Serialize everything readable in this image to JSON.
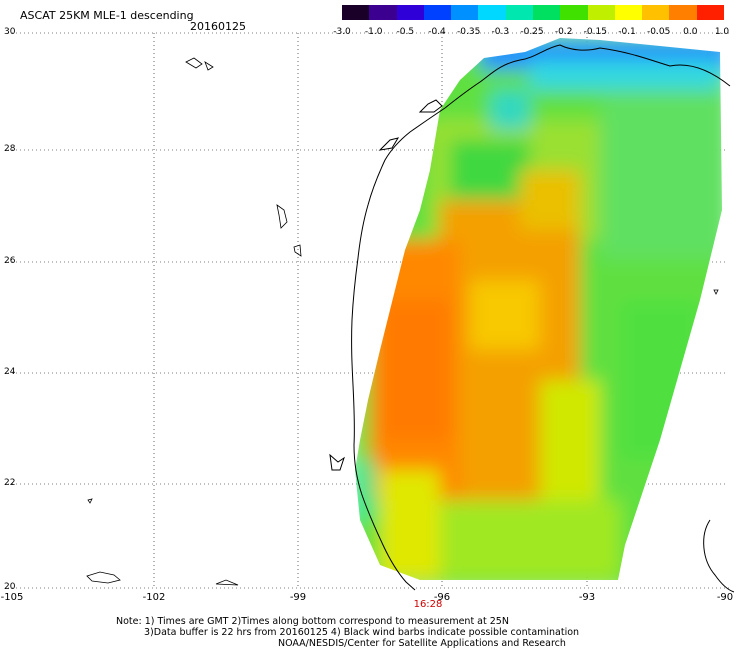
{
  "header": {
    "title": "ASCAT 25KM MLE-1 descending",
    "date": "20160125"
  },
  "colorbar": {
    "labels": [
      "-3.0",
      "-1.0",
      "-0.5",
      "-0.4",
      "-0.35",
      "-0.3",
      "-0.25",
      "-0.2",
      "-0.15",
      "-0.1",
      "-0.05",
      "0.0",
      "1.0"
    ],
    "colors": [
      "#1a0028",
      "#3c0090",
      "#3000d8",
      "#0040ff",
      "#0090ff",
      "#00d8ff",
      "#00e8b0",
      "#00e060",
      "#40e000",
      "#c0f000",
      "#ffff00",
      "#ffc000",
      "#ff8000",
      "#ff2000"
    ]
  },
  "axes": {
    "lat_labels": [
      "30",
      "28",
      "26",
      "24",
      "22",
      "20"
    ],
    "lon_labels": [
      "-105",
      "-102",
      "-99",
      "-96",
      "-93",
      "-90"
    ],
    "lat_range": [
      20,
      30
    ],
    "lon_range": [
      -105,
      -90
    ]
  },
  "time_marker": "16:28",
  "notes": {
    "line1": "Note: 1) Times are GMT 2)Times along bottom correspond to measurement at 25N",
    "line2": "3)Data buffer is 22 hrs from 20160125 4) Black wind barbs indicate possible contamination",
    "line3": "NOAA/NESDIS/Center for Satellite Applications and Research"
  }
}
